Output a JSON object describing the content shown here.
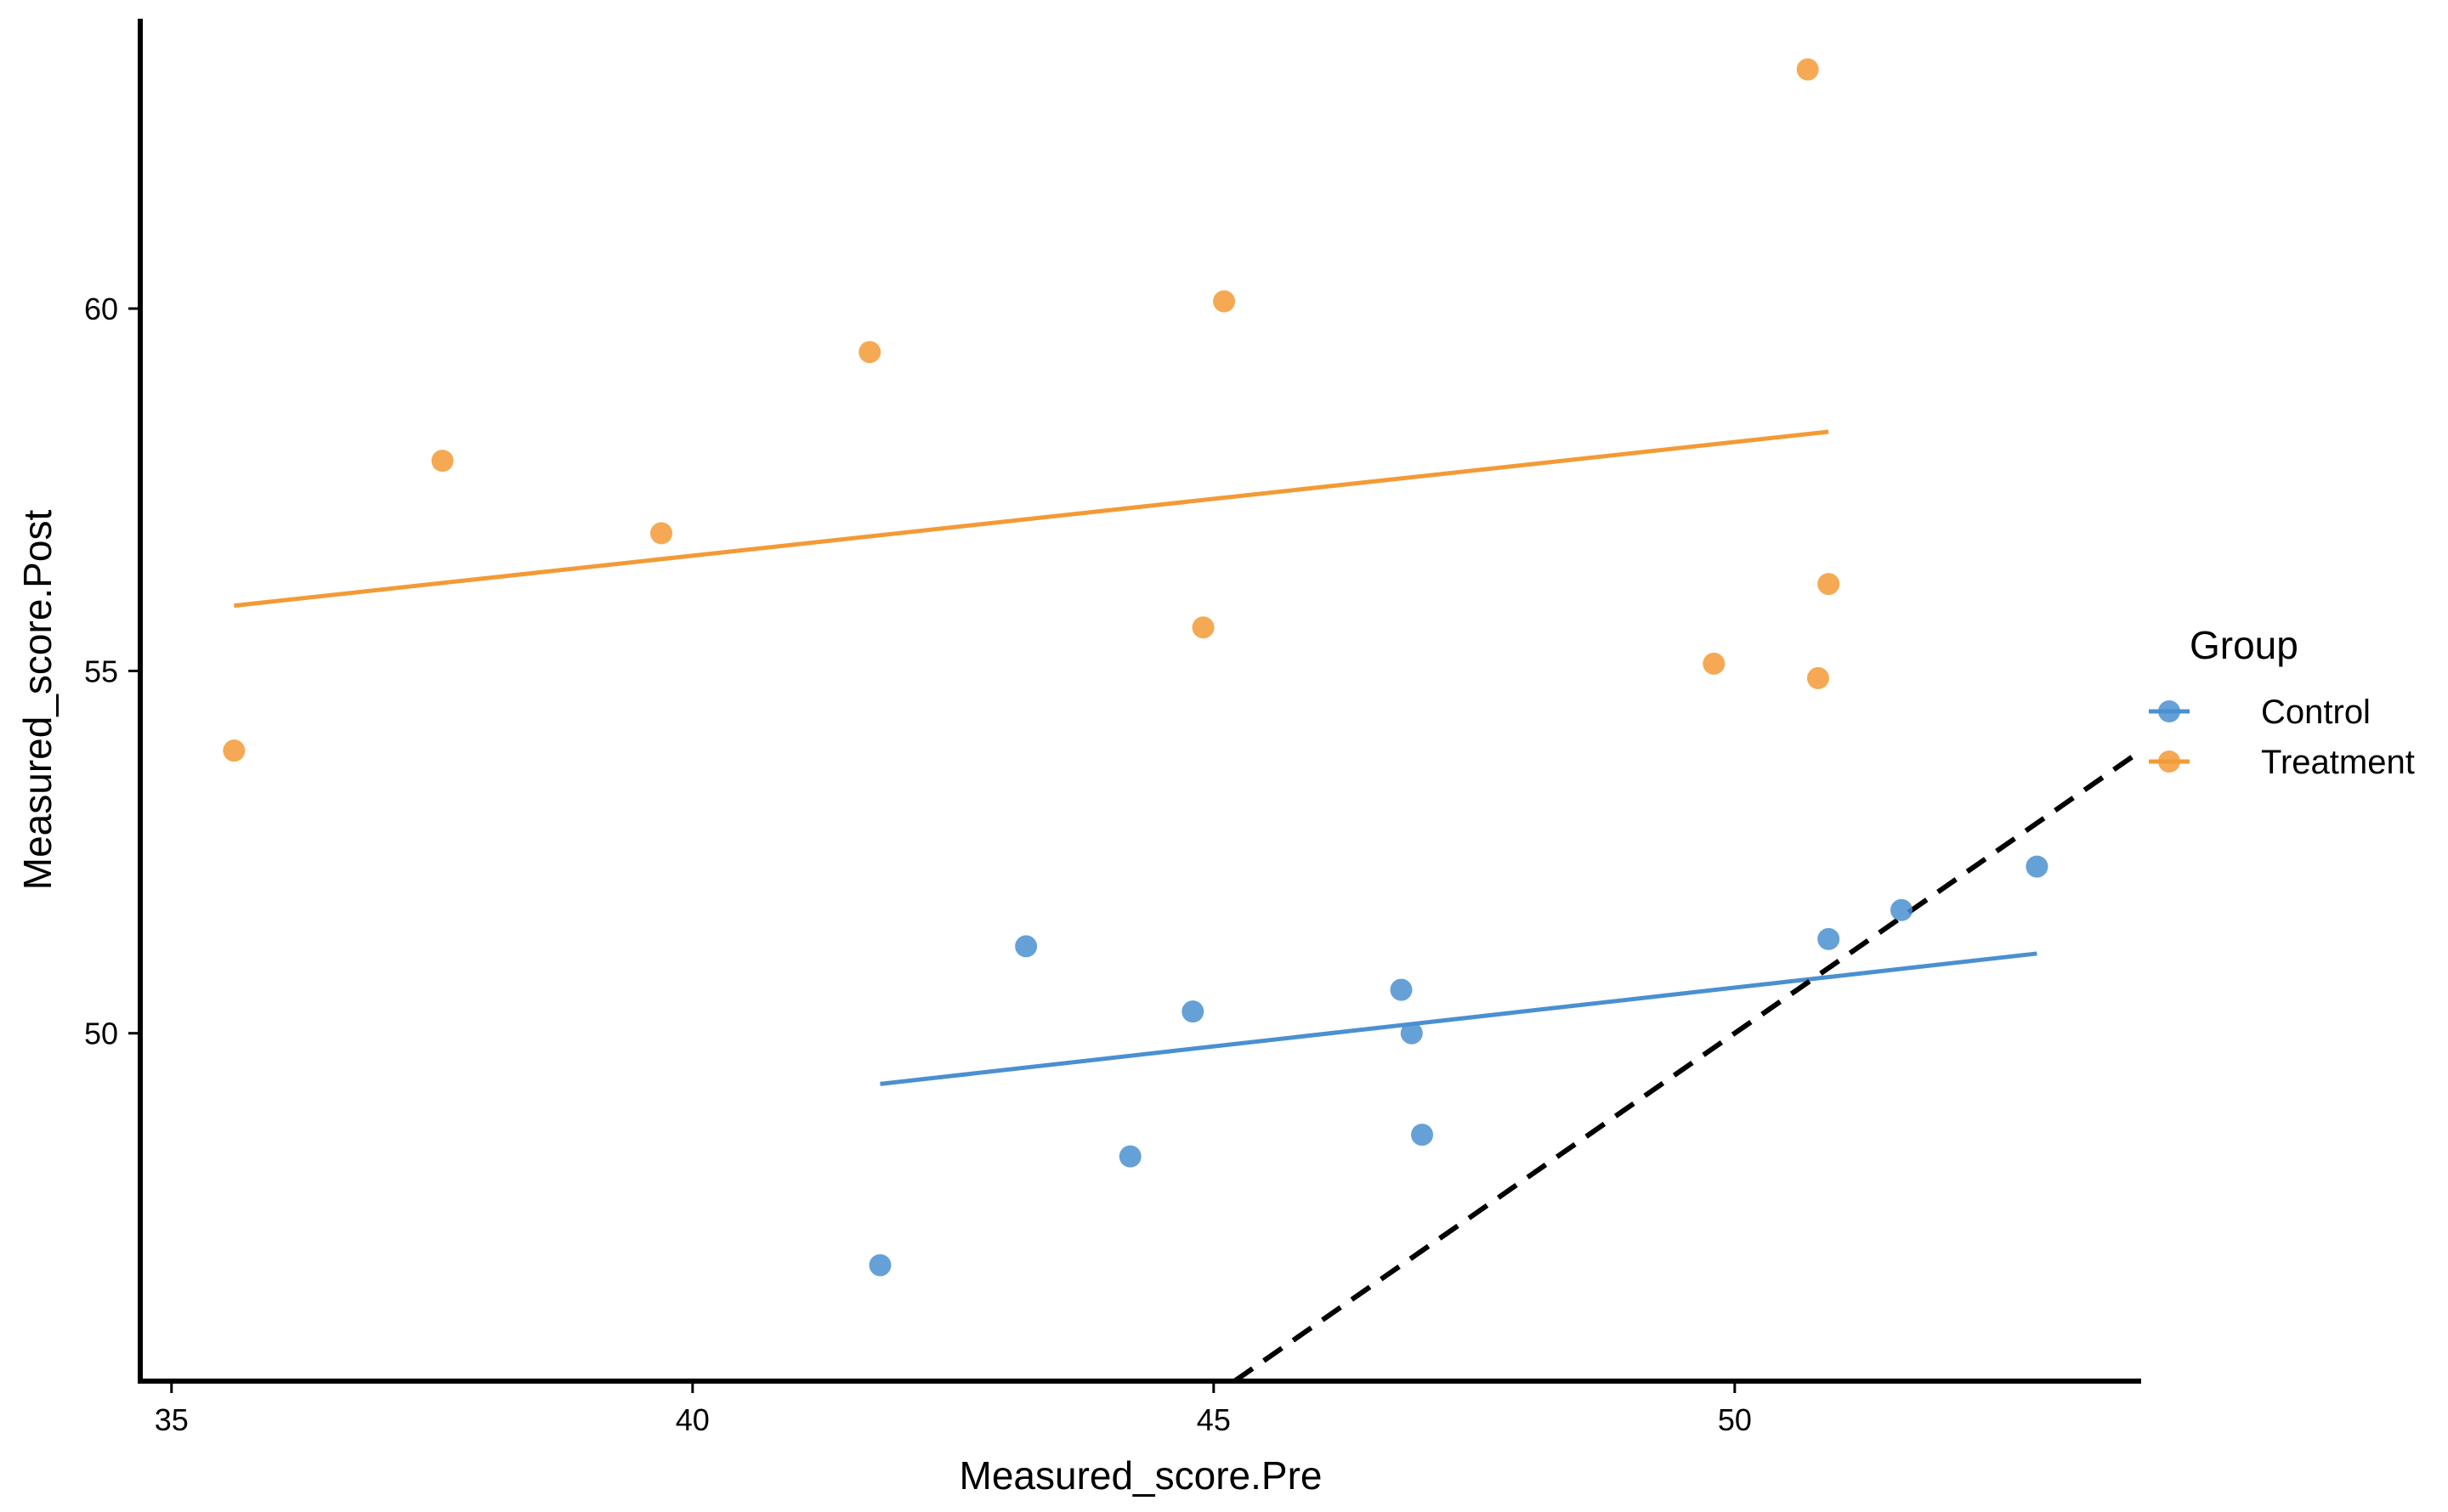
{
  "chart_data": {
    "type": "scatter",
    "title": "",
    "xlabel": "Measured_score.Pre",
    "ylabel": "Measured_score.Post",
    "xlim": [
      34.7,
      53.9
    ],
    "ylim": [
      45.2,
      64.0
    ],
    "xticks": [
      35,
      40,
      45,
      50
    ],
    "yticks": [
      50,
      55,
      60
    ],
    "grid": false,
    "legend": {
      "title": "Group",
      "position": "right"
    },
    "series": [
      {
        "name": "Control",
        "color": "#4A90D0",
        "points": [
          {
            "x": 41.8,
            "y": 46.8
          },
          {
            "x": 43.2,
            "y": 51.2
          },
          {
            "x": 44.2,
            "y": 48.3
          },
          {
            "x": 44.8,
            "y": 50.3
          },
          {
            "x": 46.8,
            "y": 50.6
          },
          {
            "x": 46.9,
            "y": 50.0
          },
          {
            "x": 47.0,
            "y": 48.6
          },
          {
            "x": 50.9,
            "y": 51.3
          },
          {
            "x": 51.6,
            "y": 51.7
          },
          {
            "x": 52.9,
            "y": 52.3
          }
        ],
        "fit": {
          "x": [
            41.8,
            52.9
          ],
          "y": [
            49.3,
            51.1
          ]
        }
      },
      {
        "name": "Treatment",
        "color": "#F39A36",
        "points": [
          {
            "x": 35.6,
            "y": 53.9
          },
          {
            "x": 37.6,
            "y": 57.9
          },
          {
            "x": 39.7,
            "y": 56.9
          },
          {
            "x": 41.7,
            "y": 59.4
          },
          {
            "x": 44.9,
            "y": 55.6
          },
          {
            "x": 45.1,
            "y": 60.1
          },
          {
            "x": 49.8,
            "y": 55.1
          },
          {
            "x": 50.7,
            "y": 63.3
          },
          {
            "x": 50.8,
            "y": 54.9
          },
          {
            "x": 50.9,
            "y": 56.2
          }
        ],
        "fit": {
          "x": [
            35.6,
            50.9
          ],
          "y": [
            55.9,
            58.3
          ]
        }
      }
    ],
    "reference_line": {
      "style": "dashed",
      "color": "#000000",
      "x": [
        45.2,
        53.9
      ],
      "y": [
        45.2,
        53.9
      ]
    }
  }
}
